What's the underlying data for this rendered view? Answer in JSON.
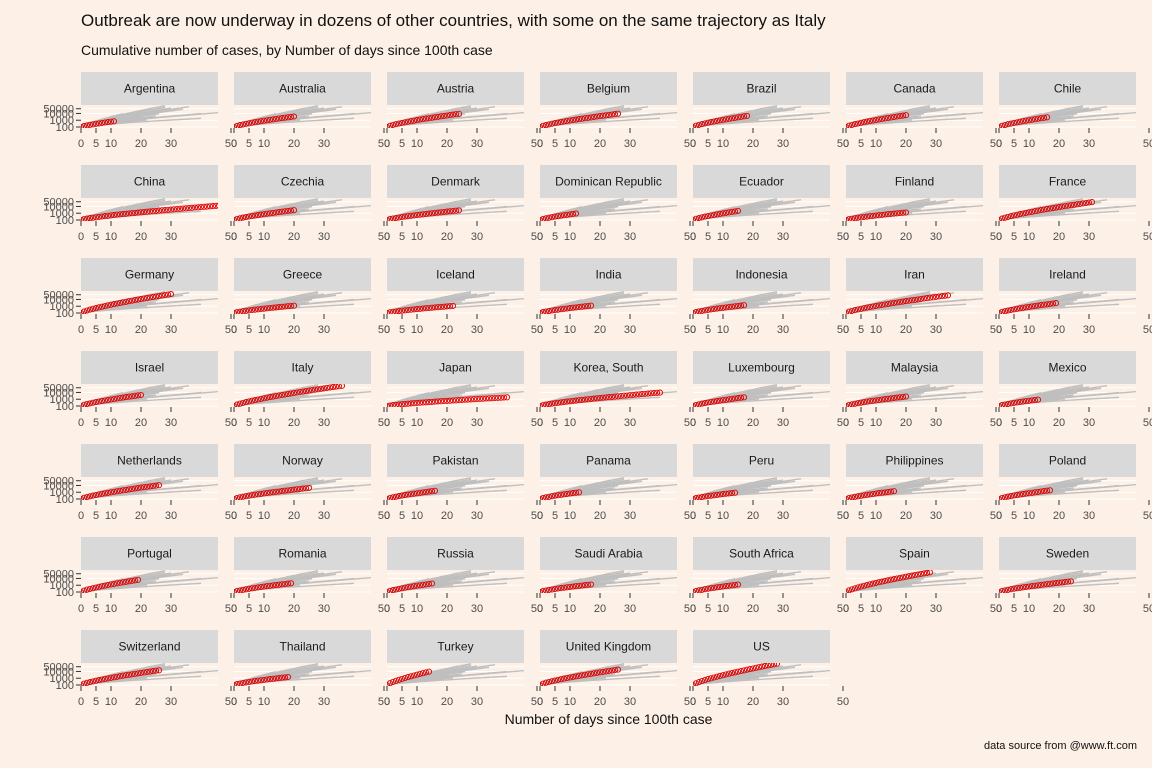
{
  "chart_data": {
    "type": "scatter",
    "title": "Outbreak are now underway in dozens of other countries, with some on the same trajectory as Italy",
    "subtitle": "Cumulative number of cases, by Number of days since 100th case",
    "xlabel": "Number of days since 100th case",
    "caption": "data source from @www.ft.com",
    "x_ticks": [
      0,
      5,
      10,
      20,
      30,
      50
    ],
    "y_ticks": [
      100,
      1000,
      10000,
      50000
    ],
    "xlim": [
      0,
      70
    ],
    "ylim_log": [
      100,
      90000
    ],
    "highlight_color": "#e00000",
    "background_color": "#bfbfbf",
    "panels": [
      {
        "name": "Argentina",
        "days": 11,
        "final": 700
      },
      {
        "name": "Australia",
        "days": 20,
        "final": 3600
      },
      {
        "name": "Austria",
        "days": 24,
        "final": 9000
      },
      {
        "name": "Belgium",
        "days": 26,
        "final": 9100
      },
      {
        "name": "Brazil",
        "days": 18,
        "final": 4400
      },
      {
        "name": "Canada",
        "days": 20,
        "final": 5600
      },
      {
        "name": "Chile",
        "days": 16,
        "final": 2700
      },
      {
        "name": "China",
        "days": 70,
        "final": 82000
      },
      {
        "name": "Czechia",
        "days": 20,
        "final": 2800
      },
      {
        "name": "Denmark",
        "days": 24,
        "final": 2600
      },
      {
        "name": "Dominican Republic",
        "days": 12,
        "final": 900
      },
      {
        "name": "Ecuador",
        "days": 15,
        "final": 2200
      },
      {
        "name": "Finland",
        "days": 20,
        "final": 1300
      },
      {
        "name": "France",
        "days": 31,
        "final": 44000
      },
      {
        "name": "Germany",
        "days": 30,
        "final": 62000
      },
      {
        "name": "Greece",
        "days": 20,
        "final": 1200
      },
      {
        "name": "Iceland",
        "days": 22,
        "final": 1100
      },
      {
        "name": "India",
        "days": 17,
        "final": 1200
      },
      {
        "name": "Indonesia",
        "days": 17,
        "final": 1400
      },
      {
        "name": "Iran",
        "days": 34,
        "final": 41000
      },
      {
        "name": "Ireland",
        "days": 19,
        "final": 2900
      },
      {
        "name": "Israel",
        "days": 20,
        "final": 4200
      },
      {
        "name": "Italy",
        "days": 36,
        "final": 97000
      },
      {
        "name": "Japan",
        "days": 40,
        "final": 1900
      },
      {
        "name": "Korea, South",
        "days": 40,
        "final": 9600
      },
      {
        "name": "Luxembourg",
        "days": 17,
        "final": 1900
      },
      {
        "name": "Malaysia",
        "days": 20,
        "final": 2500
      },
      {
        "name": "Mexico",
        "days": 13,
        "final": 850
      },
      {
        "name": "Netherlands",
        "days": 26,
        "final": 11000
      },
      {
        "name": "Norway",
        "days": 25,
        "final": 4300
      },
      {
        "name": "Pakistan",
        "days": 16,
        "final": 1600
      },
      {
        "name": "Panama",
        "days": 13,
        "final": 990
      },
      {
        "name": "Peru",
        "days": 14,
        "final": 850
      },
      {
        "name": "Philippines",
        "days": 16,
        "final": 1400
      },
      {
        "name": "Poland",
        "days": 17,
        "final": 1900
      },
      {
        "name": "Portugal",
        "days": 19,
        "final": 6400
      },
      {
        "name": "Romania",
        "days": 19,
        "final": 1950
      },
      {
        "name": "Russia",
        "days": 15,
        "final": 1800
      },
      {
        "name": "Saudi Arabia",
        "days": 17,
        "final": 1300
      },
      {
        "name": "South Africa",
        "days": 15,
        "final": 1280
      },
      {
        "name": "Spain",
        "days": 28,
        "final": 80000
      },
      {
        "name": "Sweden",
        "days": 24,
        "final": 3700
      },
      {
        "name": "Switzerland",
        "days": 26,
        "final": 15000
      },
      {
        "name": "Thailand",
        "days": 18,
        "final": 1500
      },
      {
        "name": "Turkey",
        "days": 14,
        "final": 9200
      },
      {
        "name": "United Kingdom",
        "days": 26,
        "final": 19000
      },
      {
        "name": "US",
        "days": 28,
        "final": 140000
      }
    ]
  }
}
